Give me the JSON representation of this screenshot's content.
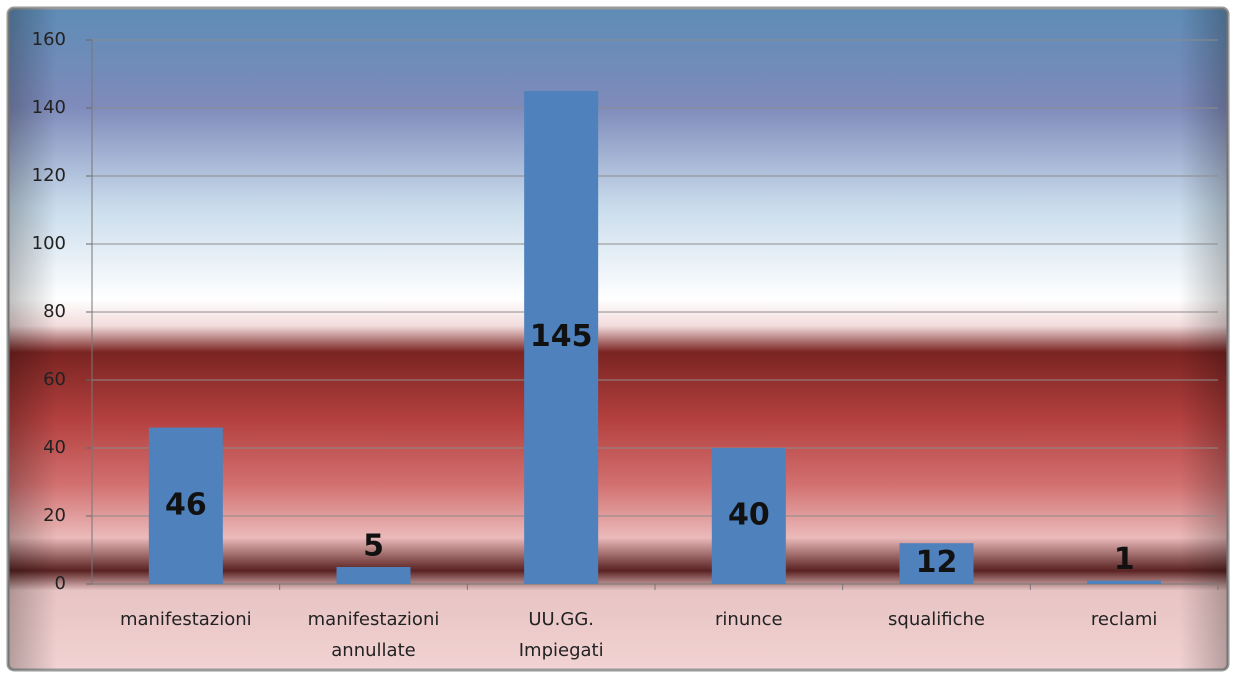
{
  "chart_data": {
    "type": "bar",
    "categories": [
      "manifestazioni",
      "manifestazioni annullate",
      "UU.GG. Impiegati",
      "rinunce",
      "squalifiche",
      "reclami"
    ],
    "values": [
      46,
      5,
      145,
      40,
      12,
      1
    ],
    "color": "#4f81bd",
    "ylim": [
      0,
      160
    ],
    "yticks": [
      0,
      20,
      40,
      60,
      80,
      100,
      120,
      140,
      160
    ],
    "grid": true
  }
}
